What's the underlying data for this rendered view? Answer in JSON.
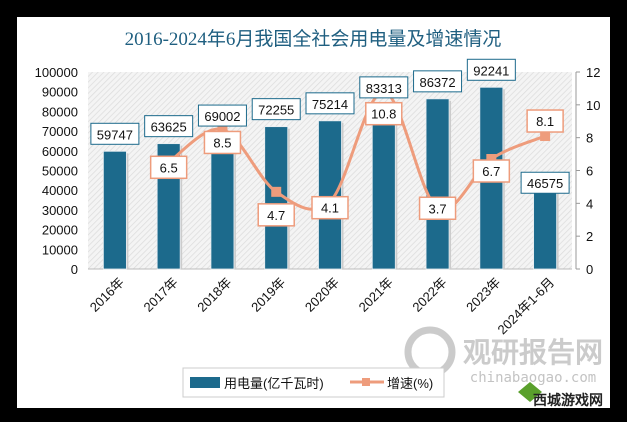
{
  "chart_data": {
    "type": "bar+line",
    "title": "2016-2024年6月我国全社会用电量及增速情况",
    "categories": [
      "2016年",
      "2017年",
      "2018年",
      "2019年",
      "2020年",
      "2021年",
      "2022年",
      "2023年",
      "2024年1-6月"
    ],
    "series": [
      {
        "name": "用电量(亿千瓦时)",
        "type": "bar",
        "axis": "left",
        "color": "#1c6a8c",
        "values": [
          59747,
          63625,
          69002,
          72255,
          75214,
          83313,
          86372,
          92241,
          46575
        ]
      },
      {
        "name": "增速(%)",
        "type": "line",
        "axis": "right",
        "color": "#ee9c7c",
        "smooth": true,
        "values": [
          null,
          6.5,
          8.5,
          4.7,
          4.1,
          10.8,
          3.7,
          6.7,
          8.1
        ]
      }
    ],
    "y_left": {
      "range": [
        0,
        100000
      ],
      "ticks": [
        0,
        10000,
        20000,
        30000,
        40000,
        50000,
        60000,
        70000,
        80000,
        90000,
        100000
      ]
    },
    "y_right": {
      "range": [
        0,
        12
      ],
      "ticks": [
        0,
        2,
        4,
        6,
        8,
        10,
        12
      ]
    },
    "legend": "bottom",
    "grid": false
  },
  "watermarks": {
    "main": "观研报告网",
    "url": "chinabaogao.com",
    "corner": "西城游戏网"
  }
}
